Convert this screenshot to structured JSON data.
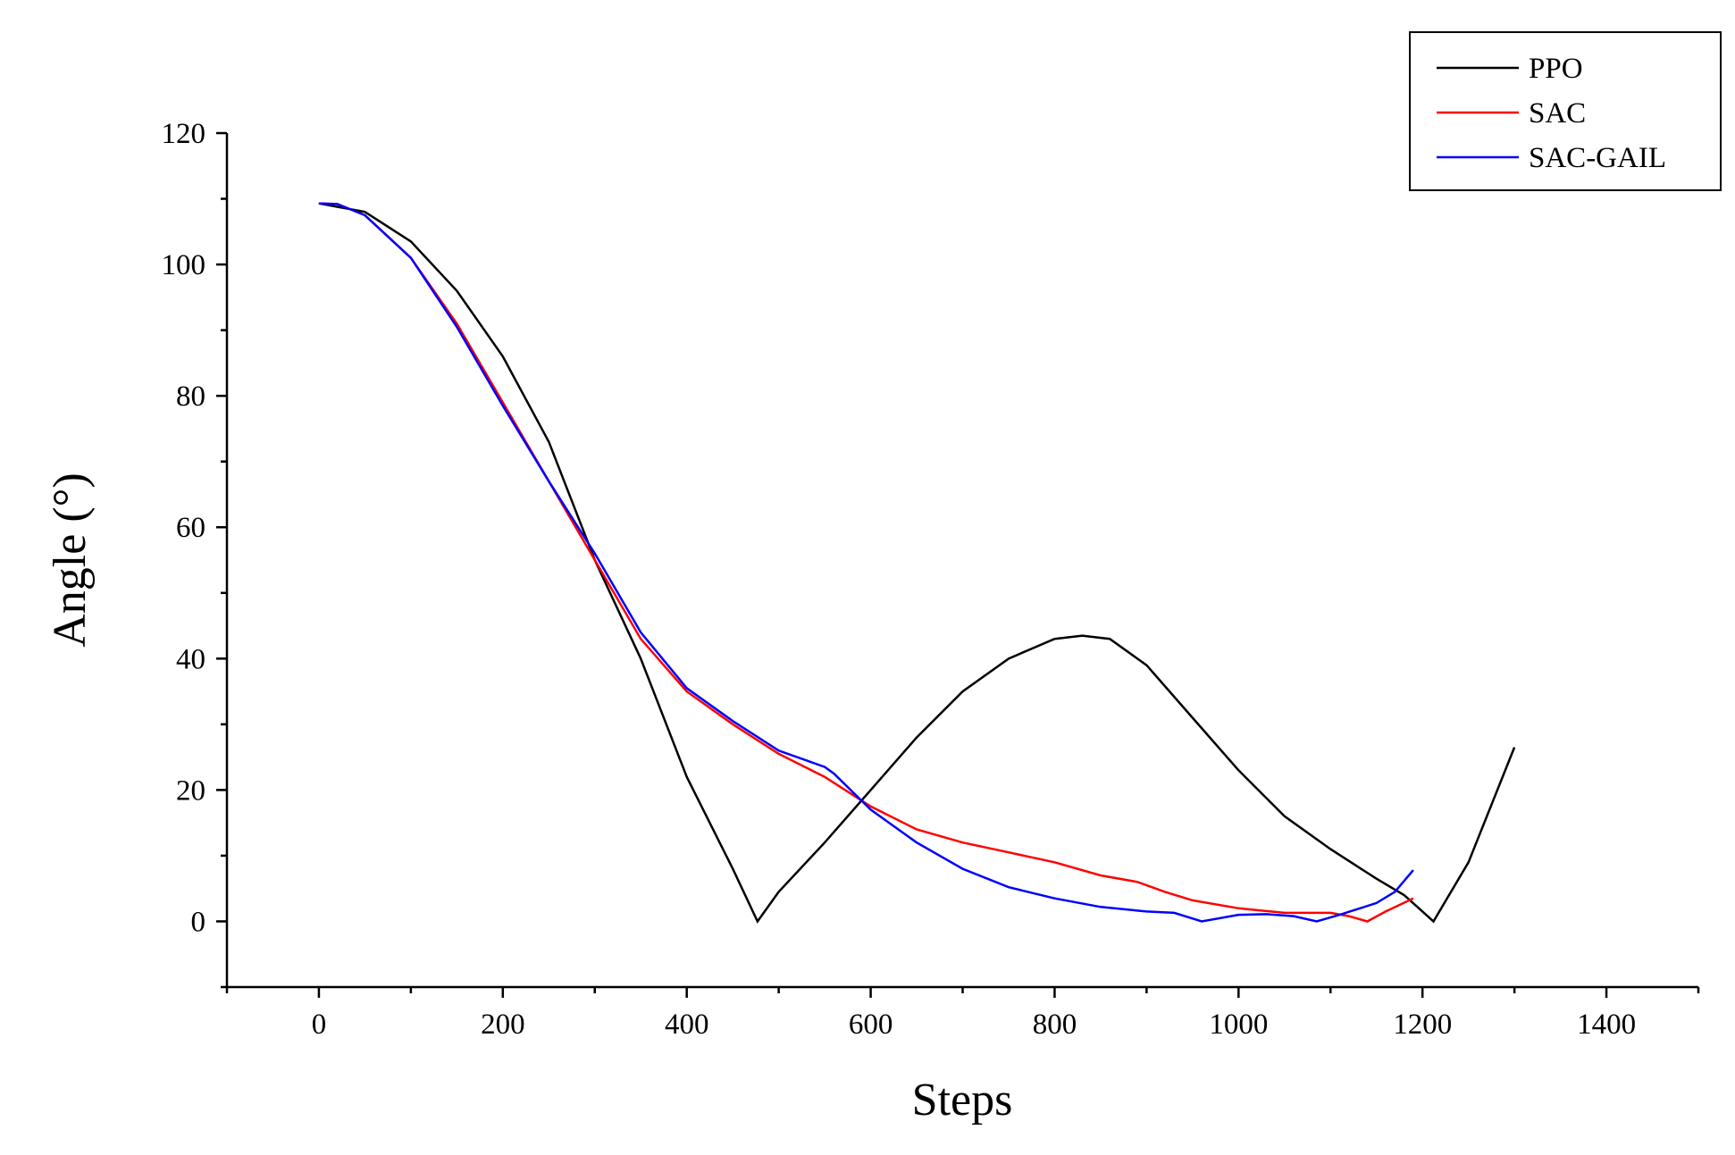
{
  "chart_data": {
    "type": "line",
    "x_label": "Steps",
    "y_label": "Angle (°)",
    "xlim": [
      -100,
      1500
    ],
    "ylim": [
      -10,
      120
    ],
    "xticks": [
      0,
      200,
      400,
      600,
      800,
      1000,
      1200,
      1400
    ],
    "yticks": [
      0,
      20,
      40,
      60,
      80,
      100,
      120
    ],
    "xminorticks": [
      -100,
      100,
      300,
      500,
      700,
      900,
      1100,
      1300,
      1500
    ],
    "yminorticks": [
      -10,
      10,
      30,
      50,
      70,
      90,
      110
    ],
    "legend": "upper right",
    "series": [
      {
        "name": "PPO",
        "color": "#000000",
        "x": [
          0,
          50,
          100,
          150,
          200,
          250,
          300,
          350,
          400,
          450,
          477,
          500,
          550,
          600,
          650,
          700,
          750,
          800,
          830,
          860,
          900,
          950,
          1000,
          1050,
          1100,
          1150,
          1180,
          1200,
          1212,
          1250,
          1300
        ],
        "values": [
          109.3,
          108,
          103.5,
          96,
          86,
          73,
          55,
          40,
          22,
          8,
          0,
          4.5,
          12,
          20,
          28,
          35,
          40,
          43,
          43.5,
          43,
          39,
          31,
          23,
          16,
          11,
          6.5,
          4,
          1.5,
          0,
          9,
          26.5
        ]
      },
      {
        "name": "SAC",
        "color": "#ff0000",
        "x": [
          0,
          20,
          50,
          100,
          150,
          200,
          250,
          300,
          350,
          400,
          450,
          500,
          550,
          600,
          650,
          700,
          750,
          800,
          850,
          890,
          920,
          950,
          1000,
          1050,
          1100,
          1120,
          1140,
          1160,
          1190
        ],
        "values": [
          109.3,
          109.2,
          107.5,
          101,
          91,
          79,
          67,
          55,
          43,
          35,
          30,
          25.5,
          22,
          17.5,
          14,
          12,
          10.5,
          9,
          7,
          6,
          4.5,
          3.2,
          2,
          1.3,
          1.3,
          0.8,
          0,
          1.5,
          3.5
        ]
      },
      {
        "name": "SAC-GAIL",
        "color": "#0000ff",
        "x": [
          0,
          20,
          50,
          100,
          150,
          200,
          250,
          300,
          350,
          400,
          450,
          500,
          550,
          560,
          600,
          650,
          700,
          750,
          800,
          850,
          900,
          930,
          960,
          1000,
          1030,
          1060,
          1085,
          1110,
          1150,
          1170,
          1190
        ],
        "values": [
          109.3,
          109.2,
          107.5,
          101,
          90.5,
          78.5,
          67,
          56,
          44,
          35.5,
          30.5,
          26,
          23.5,
          22.5,
          17,
          12,
          8,
          5.2,
          3.5,
          2.2,
          1.5,
          1.3,
          0,
          1,
          1.1,
          0.8,
          0,
          1,
          2.8,
          4.5,
          7.8
        ]
      }
    ]
  }
}
